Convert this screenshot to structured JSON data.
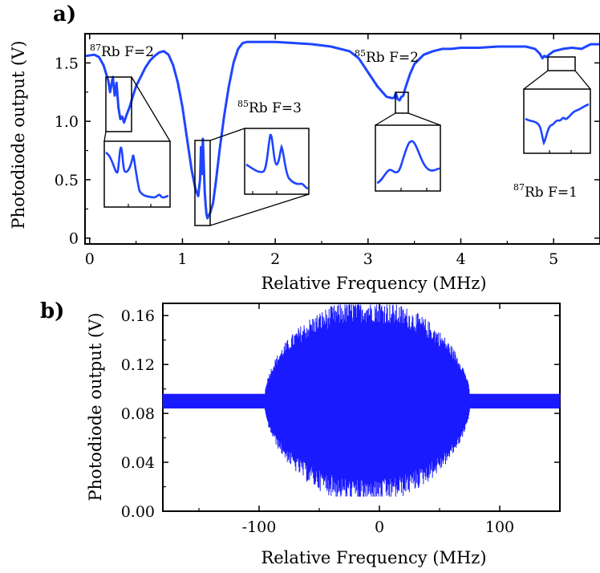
{
  "colors": {
    "series": "#1f45ff",
    "series_b": "#1a1aff",
    "axis": "#000000"
  },
  "chart_data": [
    {
      "type": "line",
      "panel_label": "a)",
      "xlabel": "Relative Frequency (MHz)",
      "ylabel": "Photodiode output (V)",
      "xlim": [
        -0.05,
        5.5
      ],
      "ylim": [
        -0.05,
        1.75
      ],
      "xticks": [
        0,
        1,
        2,
        3,
        4,
        5
      ],
      "xtick_labels": [
        "0",
        "1",
        "2",
        "3",
        "4",
        "5"
      ],
      "yticks": [
        0,
        0.5,
        1.0,
        1.5
      ],
      "ytick_labels": [
        "0",
        "0.5",
        "1.0",
        "1.5"
      ],
      "annotations": [
        {
          "sup": "87",
          "text": "Rb F=2"
        },
        {
          "sup": "85",
          "text": "Rb F=3"
        },
        {
          "sup": "85",
          "text": "Rb F=2"
        },
        {
          "sup": "87",
          "text": "Rb F=1"
        }
      ],
      "series": [
        {
          "x": [
            -0.05,
            0.05,
            0.1,
            0.15,
            0.2,
            0.22,
            0.25,
            0.27,
            0.29,
            0.31,
            0.33,
            0.35,
            0.37,
            0.4,
            0.43,
            0.46,
            0.5,
            0.55,
            0.6,
            0.65,
            0.7,
            0.75,
            0.8,
            0.85,
            0.9,
            0.95,
            1.0,
            1.05,
            1.1,
            1.14,
            1.17,
            1.19,
            1.2,
            1.21,
            1.22,
            1.23,
            1.24,
            1.25,
            1.26,
            1.27,
            1.28,
            1.3,
            1.33,
            1.36,
            1.4,
            1.45,
            1.5,
            1.55,
            1.6,
            1.65,
            1.7,
            1.8,
            2.0,
            2.2,
            2.4,
            2.6,
            2.8,
            2.9,
            3.0,
            3.1,
            3.2,
            3.25,
            3.28,
            3.3,
            3.32,
            3.34,
            3.36,
            3.38,
            3.4,
            3.45,
            3.5,
            3.6,
            3.7,
            3.8,
            3.9,
            4.0,
            4.2,
            4.4,
            4.6,
            4.7,
            4.8,
            4.85,
            4.88,
            4.9,
            4.92,
            4.95,
            5.0,
            5.1,
            5.2,
            5.3,
            5.4,
            5.5
          ],
          "y": [
            1.56,
            1.57,
            1.55,
            1.48,
            1.35,
            1.25,
            1.38,
            1.22,
            1.33,
            1.12,
            1.02,
            1.04,
            0.99,
            1.06,
            1.12,
            1.2,
            1.3,
            1.38,
            1.46,
            1.52,
            1.56,
            1.59,
            1.6,
            1.57,
            1.48,
            1.33,
            1.12,
            0.85,
            0.58,
            0.42,
            0.36,
            0.5,
            0.78,
            0.55,
            0.85,
            0.62,
            0.4,
            0.28,
            0.2,
            0.17,
            0.19,
            0.22,
            0.3,
            0.48,
            0.75,
            1.05,
            1.3,
            1.5,
            1.62,
            1.67,
            1.68,
            1.68,
            1.68,
            1.67,
            1.66,
            1.64,
            1.6,
            1.54,
            1.42,
            1.3,
            1.21,
            1.2,
            1.2,
            1.24,
            1.19,
            1.18,
            1.21,
            1.22,
            1.28,
            1.4,
            1.49,
            1.57,
            1.6,
            1.62,
            1.62,
            1.63,
            1.63,
            1.64,
            1.64,
            1.64,
            1.62,
            1.58,
            1.54,
            1.56,
            1.55,
            1.57,
            1.6,
            1.62,
            1.63,
            1.62,
            1.66,
            1.66
          ]
        }
      ]
    },
    {
      "type": "line",
      "panel_label": "b)",
      "xlabel": "Relative Frequency (MHz)",
      "ylabel": "Photodiode output (V)",
      "xlim": [
        -180,
        150
      ],
      "ylim": [
        0.0,
        0.17
      ],
      "xticks": [
        -100,
        0,
        100
      ],
      "xtick_labels": [
        "-100",
        "0",
        "100"
      ],
      "yticks": [
        0.0,
        0.04,
        0.08,
        0.12,
        0.16
      ],
      "ytick_labels": [
        "0.00",
        "0.04",
        "0.08",
        "0.12",
        "0.16"
      ],
      "signal": {
        "baseline": 0.09,
        "envelope_center": -10,
        "envelope_amplitude": 0.078,
        "envelope_halfwidth": 85,
        "noise_amplitude_edges": 0.006,
        "x_start": -180,
        "x_end": 150
      }
    }
  ]
}
